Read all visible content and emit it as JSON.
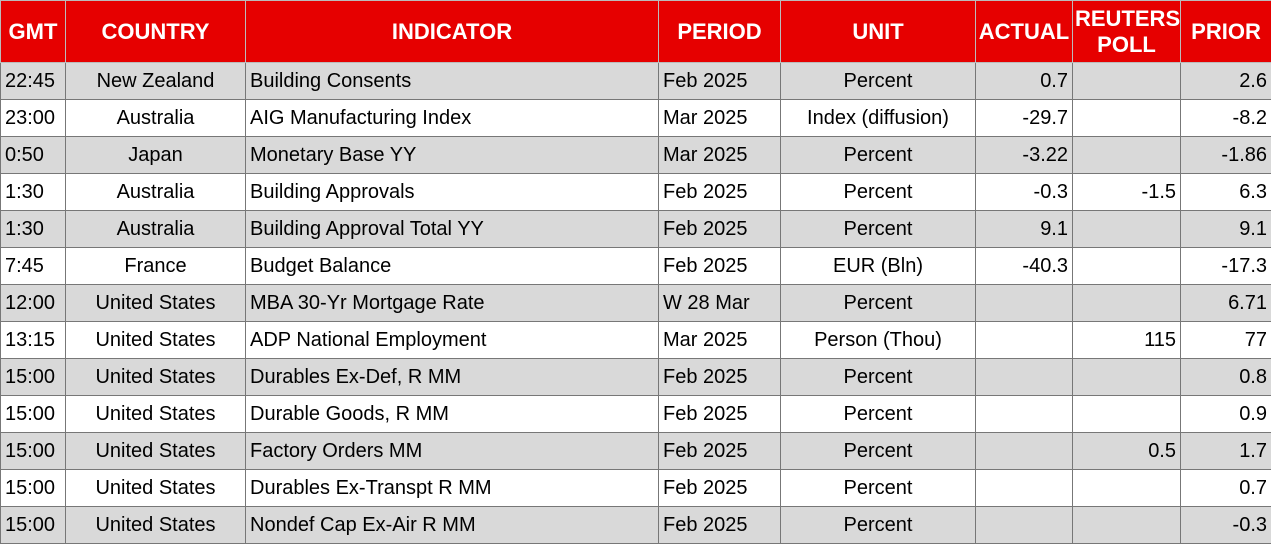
{
  "table": {
    "columns": [
      "GMT",
      "COUNTRY",
      "INDICATOR",
      "PERIOD",
      "UNIT",
      "ACTUAL",
      "REUTERS POLL",
      "PRIOR"
    ],
    "rows": [
      [
        "22:45",
        "New Zealand",
        "Building Consents",
        "Feb 2025",
        "Percent",
        "0.7",
        null,
        "2.6"
      ],
      [
        "23:00",
        "Australia",
        "AIG Manufacturing Index",
        "Mar 2025",
        "Index (diffusion)",
        "-29.7",
        null,
        "-8.2"
      ],
      [
        "0:50",
        "Japan",
        "Monetary Base YY",
        "Mar 2025",
        "Percent",
        "-3.22",
        null,
        "-1.86"
      ],
      [
        "1:30",
        "Australia",
        "Building Approvals",
        "Feb 2025",
        "Percent",
        "-0.3",
        "-1.5",
        "6.3"
      ],
      [
        "1:30",
        "Australia",
        "Building Approval Total YY",
        "Feb 2025",
        "Percent",
        "9.1",
        null,
        "9.1"
      ],
      [
        "7:45",
        "France",
        "Budget Balance",
        "Feb 2025",
        "EUR (Bln)",
        "-40.3",
        null,
        "-17.3"
      ],
      [
        "12:00",
        "United States",
        "MBA 30-Yr Mortgage Rate",
        "W 28 Mar",
        "Percent",
        null,
        null,
        "6.71"
      ],
      [
        "13:15",
        "United States",
        "ADP National Employment",
        "Mar 2025",
        "Person (Thou)",
        null,
        "115",
        "77"
      ],
      [
        "15:00",
        "United States",
        "Durables Ex-Def, R MM",
        "Feb 2025",
        "Percent",
        null,
        null,
        "0.8"
      ],
      [
        "15:00",
        "United States",
        "Durable Goods, R MM",
        "Feb 2025",
        "Percent",
        null,
        null,
        "0.9"
      ],
      [
        "15:00",
        "United States",
        "Factory Orders MM",
        "Feb 2025",
        "Percent",
        null,
        "0.5",
        "1.7"
      ],
      [
        "15:00",
        "United States",
        "Durables Ex-Transpt R MM",
        "Feb 2025",
        "Percent",
        null,
        null,
        "0.7"
      ],
      [
        "15:00",
        "United States",
        "Nondef Cap Ex-Air R MM",
        "Feb 2025",
        "Percent",
        null,
        null,
        "-0.3"
      ]
    ]
  }
}
